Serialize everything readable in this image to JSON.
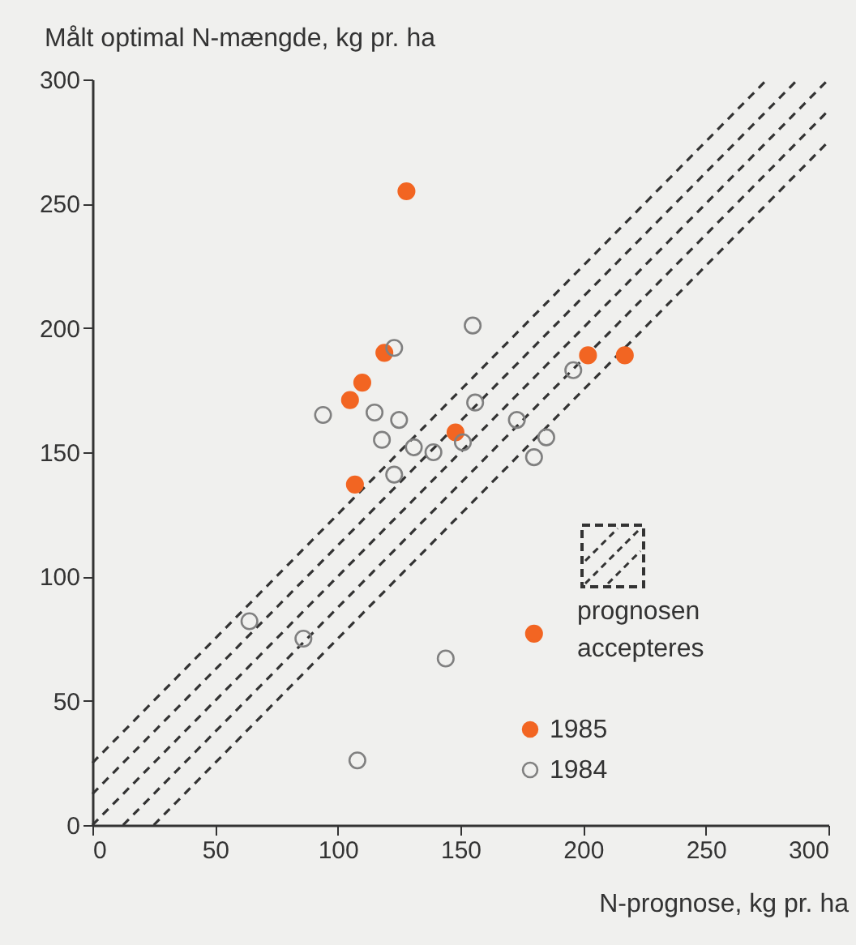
{
  "chart_data": {
    "type": "scatter",
    "xlabel": "N-prognose, kg pr. ha",
    "ylabel": "Målt optimal N-mængde, kg pr. ha",
    "xlim": [
      0,
      300
    ],
    "ylim": [
      0,
      300
    ],
    "xticks": [
      0,
      50,
      100,
      150,
      200,
      250,
      300
    ],
    "yticks": [
      0,
      50,
      100,
      150,
      200,
      250,
      300
    ],
    "grid": false,
    "legend": "bottom right",
    "annotations": [
      "prognosen accepteres"
    ],
    "series": [
      {
        "name": "1985",
        "color": "#f26522",
        "marker": "circle",
        "x": [
          128,
          119,
          110,
          105,
          107,
          148,
          202,
          217,
          180
        ],
        "values": [
          255,
          190,
          178,
          171,
          137,
          158,
          189,
          189,
          77
        ]
      },
      {
        "name": "1984",
        "color": "#808080",
        "marker": "circle",
        "x": [
          123,
          94,
          115,
          125,
          118,
          123,
          155,
          156,
          131,
          139,
          151,
          173,
          185,
          180,
          196,
          64,
          86,
          144,
          108
        ],
        "values": [
          192,
          165,
          166,
          163,
          155,
          141,
          201,
          170,
          152,
          150,
          154,
          163,
          156,
          148,
          183,
          82,
          75,
          67,
          26
        ]
      },
      {
        "type": "line",
        "line_style": "dashed",
        "marker": "none",
        "color": "#333333",
        "x": [
          0,
          275
        ],
        "values": [
          25,
          300
        ]
      },
      {
        "type": "line",
        "line_style": "dashed",
        "marker": "none",
        "color": "#333333",
        "x": [
          0,
          287.5
        ],
        "values": [
          12.5,
          300
        ]
      },
      {
        "type": "line",
        "line_style": "dashed",
        "marker": "none",
        "color": "#333333",
        "x": [
          0,
          300
        ],
        "values": [
          0,
          300
        ]
      },
      {
        "type": "line",
        "line_style": "dashed",
        "marker": "none",
        "color": "#333333",
        "x": [
          12.5,
          300
        ],
        "values": [
          0,
          287.5
        ]
      },
      {
        "type": "line",
        "line_style": "dashed",
        "marker": "none",
        "color": "#333333",
        "x": [
          25,
          300
        ],
        "values": [
          0,
          275
        ]
      }
    ]
  }
}
